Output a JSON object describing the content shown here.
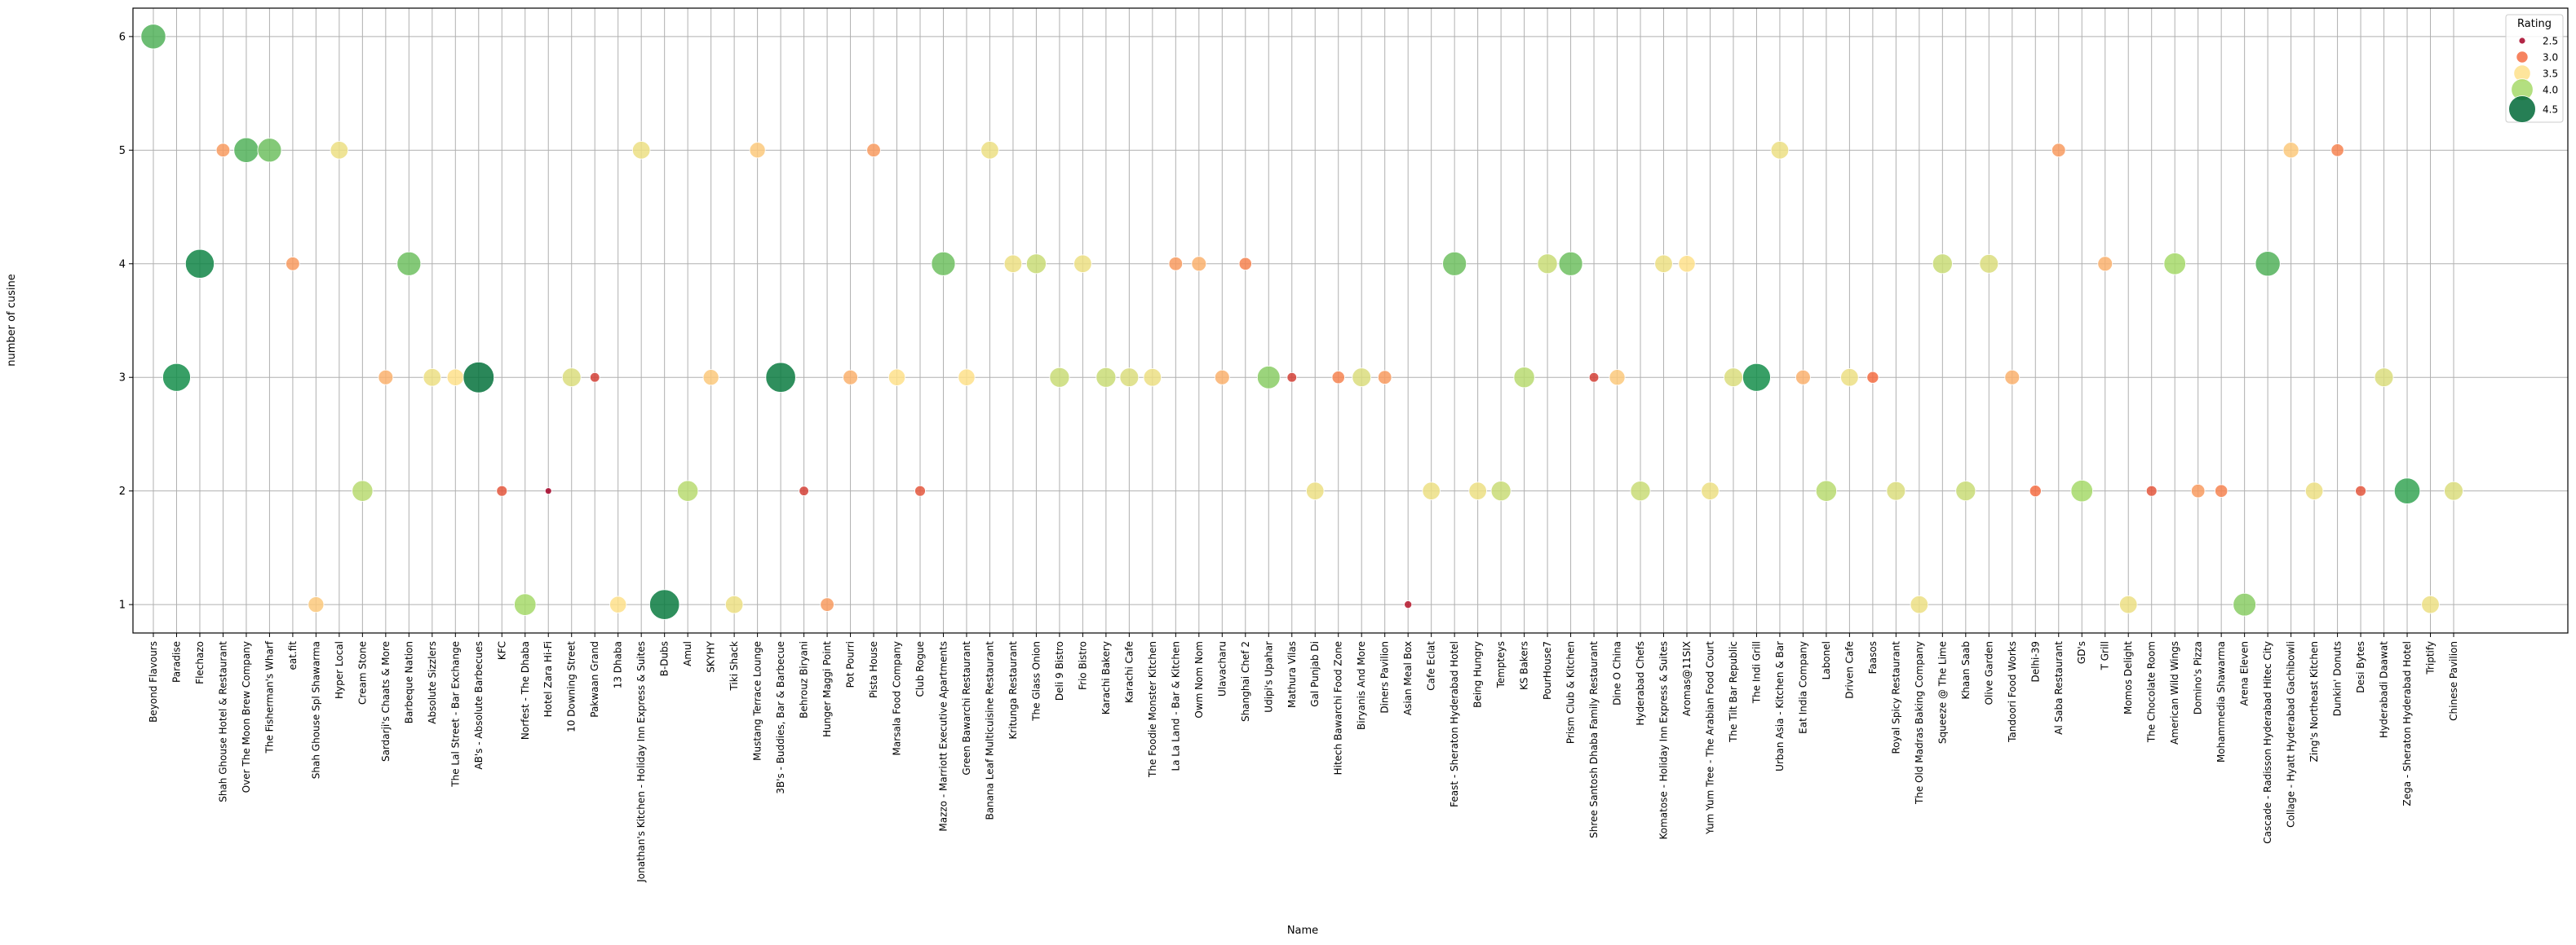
{
  "chart_data": {
    "type": "scatter",
    "title": "",
    "xlabel": "Name",
    "ylabel": "number of cusine",
    "ylim": [
      0.75,
      6.25
    ],
    "yticks": [
      1,
      2,
      3,
      4,
      5,
      6
    ],
    "grid": true,
    "legend": {
      "title": "Rating",
      "placement": "top-right",
      "entries": [
        "2.5",
        "3.0",
        "3.5",
        "4.0",
        "4.5"
      ]
    },
    "colors": {
      "2.5": "#a50026",
      "3.0": "#f46d43",
      "3.5": "#fee08b",
      "4.0": "#a6d96a",
      "4.5": "#006837"
    },
    "points": [
      {
        "name": "Beyond Flavours",
        "cuisines": 6,
        "rating": 4.3
      },
      {
        "name": "Paradise",
        "cuisines": 3,
        "rating": 4.6
      },
      {
        "name": "Flechazo",
        "cuisines": 4,
        "rating": 4.7
      },
      {
        "name": "Shah Ghouse Hotel & Restaurant",
        "cuisines": 5,
        "rating": 3.2
      },
      {
        "name": "Over The Moon Brew Company",
        "cuisines": 5,
        "rating": 4.3
      },
      {
        "name": "The Fisherman's Wharf",
        "cuisines": 5,
        "rating": 4.2
      },
      {
        "name": "eat.fit",
        "cuisines": 4,
        "rating": 3.2
      },
      {
        "name": "Shah Ghouse Spl Shawarma",
        "cuisines": 1,
        "rating": 3.4
      },
      {
        "name": "Hyper Local",
        "cuisines": 5,
        "rating": 3.6
      },
      {
        "name": "Cream Stone",
        "cuisines": 2,
        "rating": 3.9
      },
      {
        "name": "Sardarji's Chaats & More",
        "cuisines": 3,
        "rating": 3.3
      },
      {
        "name": "Barbeque Nation",
        "cuisines": 4,
        "rating": 4.2
      },
      {
        "name": "Absolute Sizzlers",
        "cuisines": 3,
        "rating": 3.6
      },
      {
        "name": "The Lal Street - Bar Exchange",
        "cuisines": 3,
        "rating": 3.5
      },
      {
        "name": "AB's - Absolute Barbecues",
        "cuisines": 3,
        "rating": 4.9
      },
      {
        "name": "KFC",
        "cuisines": 2,
        "rating": 2.9
      },
      {
        "name": "Norfest - The Dhaba",
        "cuisines": 1,
        "rating": 4.0
      },
      {
        "name": "Hotel Zara Hi-Fi",
        "cuisines": 2,
        "rating": 2.5
      },
      {
        "name": "10 Downing Street",
        "cuisines": 3,
        "rating": 3.7
      },
      {
        "name": "Pakwaan Grand",
        "cuisines": 3,
        "rating": 2.8
      },
      {
        "name": "13 Dhaba",
        "cuisines": 1,
        "rating": 3.5
      },
      {
        "name": "Jonathan's Kitchen - Holiday Inn Express & Suites",
        "cuisines": 5,
        "rating": 3.6
      },
      {
        "name": "B-Dubs",
        "cuisines": 1,
        "rating": 4.8
      },
      {
        "name": "Amul",
        "cuisines": 2,
        "rating": 3.9
      },
      {
        "name": "SKYHY",
        "cuisines": 3,
        "rating": 3.4
      },
      {
        "name": "Tiki Shack",
        "cuisines": 1,
        "rating": 3.6
      },
      {
        "name": "Mustang Terrace Lounge",
        "cuisines": 5,
        "rating": 3.4
      },
      {
        "name": "3B's - Buddies, Bar & Barbecue",
        "cuisines": 3,
        "rating": 4.8
      },
      {
        "name": "Behrouz Biryani",
        "cuisines": 2,
        "rating": 2.8
      },
      {
        "name": "Hunger Maggi Point",
        "cuisines": 1,
        "rating": 3.2
      },
      {
        "name": "Pot Pourri",
        "cuisines": 3,
        "rating": 3.3
      },
      {
        "name": "Pista House",
        "cuisines": 5,
        "rating": 3.2
      },
      {
        "name": "Marsala Food Company",
        "cuisines": 3,
        "rating": 3.5
      },
      {
        "name": "Club Rogue",
        "cuisines": 2,
        "rating": 2.9
      },
      {
        "name": "Mazzo - Marriott Executive Apartments",
        "cuisines": 4,
        "rating": 4.2
      },
      {
        "name": "Green Bawarchi Restaurant",
        "cuisines": 3,
        "rating": 3.5
      },
      {
        "name": "Banana Leaf Multicuisine Restaurant",
        "cuisines": 5,
        "rating": 3.6
      },
      {
        "name": "Kritunga Restaurant",
        "cuisines": 4,
        "rating": 3.6
      },
      {
        "name": "The Glass Onion",
        "cuisines": 4,
        "rating": 3.8
      },
      {
        "name": "Deli 9 Bistro",
        "cuisines": 3,
        "rating": 3.8
      },
      {
        "name": "Frio Bistro",
        "cuisines": 4,
        "rating": 3.6
      },
      {
        "name": "Karachi Bakery",
        "cuisines": 3,
        "rating": 3.8
      },
      {
        "name": "Karachi Cafe",
        "cuisines": 3,
        "rating": 3.7
      },
      {
        "name": "The Foodie Monster Kitchen",
        "cuisines": 3,
        "rating": 3.6
      },
      {
        "name": "La La Land - Bar & Kitchen",
        "cuisines": 4,
        "rating": 3.2
      },
      {
        "name": "Owm Nom Nom",
        "cuisines": 4,
        "rating": 3.3
      },
      {
        "name": "Ulavacharu",
        "cuisines": 3,
        "rating": 3.3
      },
      {
        "name": "Shanghai Chef 2",
        "cuisines": 4,
        "rating": 3.1
      },
      {
        "name": "Udipi's Upahar",
        "cuisines": 3,
        "rating": 4.1
      },
      {
        "name": "Mathura Vilas",
        "cuisines": 3,
        "rating": 2.8
      },
      {
        "name": "Gal Punjab Di",
        "cuisines": 2,
        "rating": 3.6
      },
      {
        "name": "Hitech Bawarchi Food Zone",
        "cuisines": 3,
        "rating": 3.1
      },
      {
        "name": "Biryanis And More",
        "cuisines": 3,
        "rating": 3.7
      },
      {
        "name": "Diners Pavilion",
        "cuisines": 3,
        "rating": 3.2
      },
      {
        "name": "Asian Meal Box",
        "cuisines": 1,
        "rating": 2.6
      },
      {
        "name": "Cafe Eclat",
        "cuisines": 2,
        "rating": 3.6
      },
      {
        "name": "Feast - Sheraton Hyderabad Hotel",
        "cuisines": 4,
        "rating": 4.2
      },
      {
        "name": "Being Hungry",
        "cuisines": 2,
        "rating": 3.6
      },
      {
        "name": "Tempteys",
        "cuisines": 2,
        "rating": 3.8
      },
      {
        "name": "KS Bakers",
        "cuisines": 3,
        "rating": 3.9
      },
      {
        "name": "PourHouse7",
        "cuisines": 4,
        "rating": 3.8
      },
      {
        "name": "Prism Club & Kitchen",
        "cuisines": 4,
        "rating": 4.2
      },
      {
        "name": "Shree Santosh Dhaba Family Restaurant",
        "cuisines": 3,
        "rating": 2.8
      },
      {
        "name": "Dine O China",
        "cuisines": 3,
        "rating": 3.4
      },
      {
        "name": "Hyderabad Chefs",
        "cuisines": 2,
        "rating": 3.8
      },
      {
        "name": "Komatose - Holiday Inn Express & Suites",
        "cuisines": 4,
        "rating": 3.6
      },
      {
        "name": "Aromas@11SIX",
        "cuisines": 4,
        "rating": 3.5
      },
      {
        "name": "Yum Yum Tree - The Arabian Food Court",
        "cuisines": 2,
        "rating": 3.6
      },
      {
        "name": "The Tilt Bar Republic",
        "cuisines": 3,
        "rating": 3.7
      },
      {
        "name": "The Indi Grill",
        "cuisines": 3,
        "rating": 4.6
      },
      {
        "name": "Urban Asia - Kitchen & Bar",
        "cuisines": 5,
        "rating": 3.6
      },
      {
        "name": "Eat India Company",
        "cuisines": 3,
        "rating": 3.3
      },
      {
        "name": "Labonel",
        "cuisines": 2,
        "rating": 3.9
      },
      {
        "name": "Driven Cafe",
        "cuisines": 3,
        "rating": 3.6
      },
      {
        "name": "Faasos",
        "cuisines": 3,
        "rating": 3.0
      },
      {
        "name": "Royal Spicy Restaurant",
        "cuisines": 2,
        "rating": 3.7
      },
      {
        "name": "The Old Madras Baking Company",
        "cuisines": 1,
        "rating": 3.6
      },
      {
        "name": "Squeeze @ The Lime",
        "cuisines": 4,
        "rating": 3.8
      },
      {
        "name": "Khaan Saab",
        "cuisines": 2,
        "rating": 3.8
      },
      {
        "name": "Olive Garden",
        "cuisines": 4,
        "rating": 3.7
      },
      {
        "name": "Tandoori Food Works",
        "cuisines": 3,
        "rating": 3.3
      },
      {
        "name": "Delhi-39",
        "cuisines": 2,
        "rating": 3.0
      },
      {
        "name": "Al Saba Restaurant",
        "cuisines": 5,
        "rating": 3.2
      },
      {
        "name": "GD's",
        "cuisines": 2,
        "rating": 4.0
      },
      {
        "name": "T Grill",
        "cuisines": 4,
        "rating": 3.3
      },
      {
        "name": "Momos Delight",
        "cuisines": 1,
        "rating": 3.6
      },
      {
        "name": "The Chocolate Room",
        "cuisines": 2,
        "rating": 2.9
      },
      {
        "name": "American Wild Wings",
        "cuisines": 4,
        "rating": 4.0
      },
      {
        "name": "Domino's Pizza",
        "cuisines": 2,
        "rating": 3.2
      },
      {
        "name": "Mohammedia Shawarma",
        "cuisines": 2,
        "rating": 3.1
      },
      {
        "name": "Arena Eleven",
        "cuisines": 1,
        "rating": 4.1
      },
      {
        "name": "Cascade - Radisson Hyderabad Hitec City",
        "cuisines": 4,
        "rating": 4.3
      },
      {
        "name": "Collage - Hyatt Hyderabad Gachibowli",
        "cuisines": 5,
        "rating": 3.4
      },
      {
        "name": "Zing's Northeast Kitchen",
        "cuisines": 2,
        "rating": 3.6
      },
      {
        "name": "Dunkin' Donuts",
        "cuisines": 5,
        "rating": 3.1
      },
      {
        "name": "Desi Bytes",
        "cuisines": 2,
        "rating": 2.9
      },
      {
        "name": "Hyderabadi Daawat",
        "cuisines": 3,
        "rating": 3.7
      },
      {
        "name": "Zega - Sheraton Hyderabad Hotel",
        "cuisines": 2,
        "rating": 4.4
      },
      {
        "name": "Triptify",
        "cuisines": 1,
        "rating": 3.6
      },
      {
        "name": "Chinese Pavilion",
        "cuisines": 2,
        "rating": 3.7
      }
    ]
  }
}
